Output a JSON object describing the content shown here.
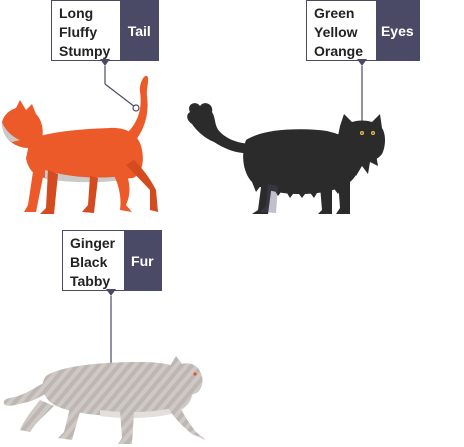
{
  "callouts": {
    "tail": {
      "label": "Tail",
      "options": [
        "Long",
        "Fluffy",
        "Stumpy"
      ]
    },
    "eyes": {
      "label": "Eyes",
      "options": [
        "Green",
        "Yellow",
        "Orange"
      ]
    },
    "fur": {
      "label": "Fur",
      "options": [
        "Ginger",
        "Black",
        "Tabby"
      ]
    }
  },
  "cats": {
    "ginger": {
      "icon": "ginger-cat-icon",
      "color": "#ec5a2a",
      "shade": "#c9c9c9"
    },
    "black": {
      "icon": "black-fluffy-cat-icon",
      "color": "#2b2b2b",
      "eye_color": "#e8c24a"
    },
    "tabby": {
      "icon": "grey-tabby-cat-icon",
      "color": "#bdb6b3",
      "stripe": "#cfc9c6",
      "eye_color": "#e2552a"
    }
  },
  "colors": {
    "callout_dark": "#4a4a66",
    "line": "#4a4a66"
  }
}
